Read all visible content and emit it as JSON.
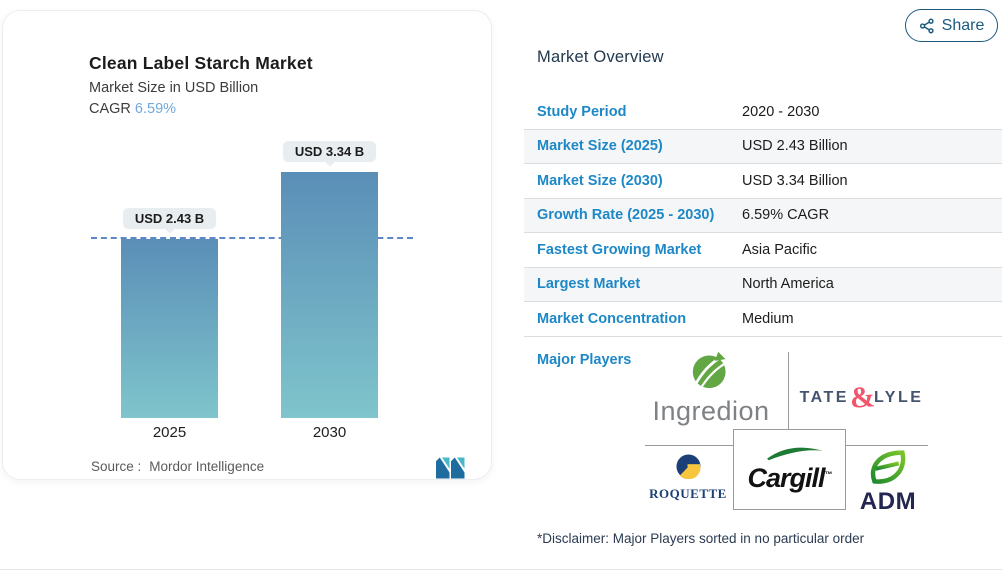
{
  "share": {
    "label": "Share"
  },
  "chart_card": {
    "title": "Clean Label Starch Market",
    "subtitle": "Market Size in USD Billion",
    "cagr_label": "CAGR",
    "cagr_value": "6.59%",
    "source_prefix": "Source :",
    "source_name": "Mordor Intelligence"
  },
  "chart_data": {
    "type": "bar",
    "categories": [
      "2025",
      "2030"
    ],
    "values": [
      2.43,
      3.34
    ],
    "bar_labels": [
      "USD 2.43 B",
      "USD 3.34 B"
    ],
    "title": "Clean Label Starch Market",
    "ylabel": "Market Size in USD Billion",
    "cagr_pct": 6.59,
    "reference_line_value": 2.43,
    "ylim": [
      0,
      3.6
    ],
    "grid": false,
    "bar_gradient": [
      "#5a8eb7",
      "#7fc5cc"
    ],
    "reference_line_color": "#5e87c9"
  },
  "overview": {
    "heading": "Market Overview",
    "rows": [
      {
        "label": "Study Period",
        "value": "2020 - 2030"
      },
      {
        "label": "Market Size (2025)",
        "value": "USD 2.43 Billion"
      },
      {
        "label": "Market Size (2030)",
        "value": "USD 3.34 Billion"
      },
      {
        "label": "Growth Rate (2025 - 2030)",
        "value": "6.59% CAGR"
      },
      {
        "label": "Fastest Growing Market",
        "value": "Asia Pacific"
      },
      {
        "label": "Largest Market",
        "value": "North America"
      },
      {
        "label": "Market Concentration",
        "value": "Medium"
      }
    ],
    "major_players_label": "Major Players",
    "major_players": [
      "Ingredion",
      "Tate & Lyle",
      "Roquette",
      "Cargill",
      "ADM"
    ],
    "players": {
      "ingredion": "Ingredion",
      "tate_part1": "TATE",
      "tate_amp": "&",
      "tate_part2": "LYLE",
      "roquette": "ROQUETTE",
      "cargill": "Cargill",
      "cargill_tm": "™",
      "adm": "ADM"
    },
    "disclaimer": "*Disclaimer: Major Players sorted in no particular order"
  },
  "colors": {
    "label_blue": "#1e88c7",
    "share_navy": "#1b5a7d",
    "cagr_blue": "#6fa8dc",
    "bar_top": "#5a8eb7",
    "bar_bottom": "#7fc5cc",
    "dashed_line": "#5e87c9"
  }
}
